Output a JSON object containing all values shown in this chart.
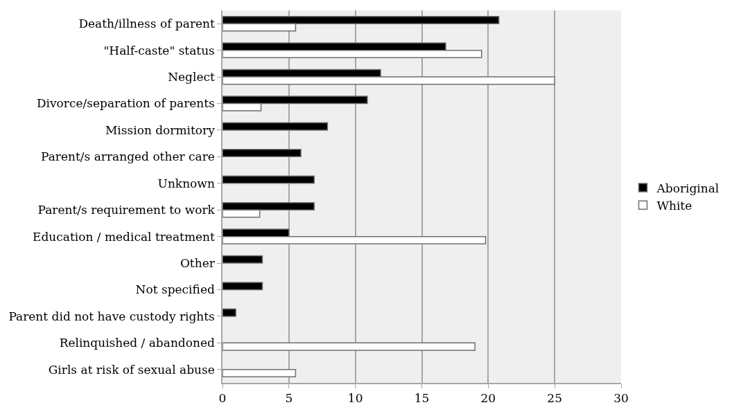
{
  "chart_data": {
    "type": "bar",
    "orientation": "horizontal",
    "categories": [
      "Death/illness of parent",
      "\"Half-caste\" status",
      "Neglect",
      "Divorce/separation of parents",
      "Mission dormitory",
      "Parent/s arranged other care",
      "Unknown",
      "Parent/s requirement to work",
      "Education / medical treatment",
      "Other",
      "Not specified",
      "Parent did not have custody rights",
      "Relinquished / abandoned",
      "Girls at risk of sexual abuse"
    ],
    "series": [
      {
        "name": "Aboriginal",
        "color": "#000000",
        "values": [
          20.8,
          16.8,
          11.9,
          10.9,
          7.9,
          5.9,
          6.9,
          6.9,
          5,
          3,
          3,
          1,
          null,
          null
        ]
      },
      {
        "name": "White",
        "color": "#ffffff",
        "values": [
          5.5,
          19.5,
          25,
          2.9,
          null,
          null,
          null,
          2.8,
          19.8,
          null,
          null,
          null,
          19,
          5.5
        ]
      }
    ],
    "xlim": [
      0,
      30
    ],
    "xticks": [
      0,
      5,
      10,
      15,
      20,
      25,
      30
    ],
    "grid": "x",
    "legend": "right"
  }
}
